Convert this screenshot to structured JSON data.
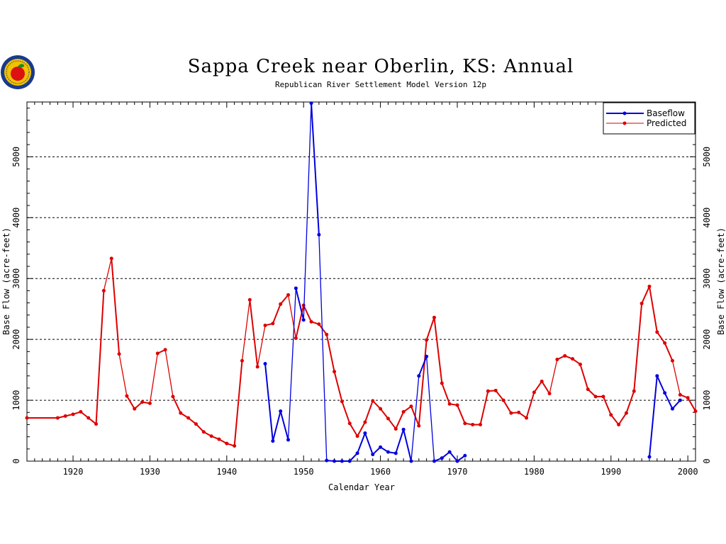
{
  "colors": {
    "baseflow": "#0000dd",
    "predicted": "#dd0000",
    "logo_ring": "#1a3a8a",
    "logo_fill": "#f2c200",
    "logo_apple": "#dd1111",
    "logo_leaf": "#1d8a1d"
  },
  "logo": {
    "icon": "apple-seal-icon"
  },
  "chart_data": {
    "type": "line",
    "title": "Sappa Creek near Oberlin, KS: Annual",
    "subtitle": "Republican River Settlement Model Version 12p",
    "xlabel": "Calendar Year",
    "ylabel_left": "Base Flow (acre-feet)",
    "ylabel_right": "Base Flow (acre-feet)",
    "xlim": [
      1914,
      2001
    ],
    "ylim": [
      0,
      5900
    ],
    "x_ticks": [
      1920,
      1930,
      1940,
      1950,
      1960,
      1970,
      1980,
      1990,
      2000
    ],
    "x_tick_labels": [
      "1920",
      "1930",
      "1940",
      "1950",
      "1960",
      "1970",
      "1980",
      "1990",
      "2000"
    ],
    "y_ticks": [
      0,
      1000,
      2000,
      3000,
      4000,
      5000
    ],
    "y_tick_labels": [
      "0",
      "1000",
      "2000",
      "3000",
      "4000",
      "5000"
    ],
    "gridlines_y": [
      1000,
      2000,
      3000,
      4000,
      5000
    ],
    "legend_position": "top-right",
    "series": [
      {
        "name": "Baseflow",
        "color": "#0000dd",
        "segments": [
          {
            "x": [
              1945,
              1946,
              1947,
              1948,
              1949,
              1950,
              1951,
              1952,
              1953,
              1954,
              1955,
              1956,
              1957,
              1958,
              1959,
              1960,
              1961,
              1962,
              1963,
              1964,
              1965,
              1966,
              1967,
              1968,
              1969,
              1970,
              1971
            ],
            "y": [
              1600,
              330,
              820,
              350,
              2840,
              2320,
              5880,
              3720,
              10,
              0,
              0,
              0,
              130,
              460,
              110,
              230,
              150,
              130,
              520,
              0,
              1400,
              1720,
              0,
              50,
              150,
              0,
              90
            ]
          },
          {
            "x": [
              1995,
              1996,
              1997,
              1998,
              1999
            ],
            "y": [
              70,
              1400,
              1120,
              860,
              1000
            ]
          }
        ]
      },
      {
        "name": "Predicted",
        "color": "#dd0000",
        "x": [
          1914,
          1918,
          1919,
          1920,
          1921,
          1922,
          1923,
          1924,
          1925,
          1926,
          1927,
          1928,
          1929,
          1930,
          1931,
          1932,
          1933,
          1934,
          1935,
          1936,
          1937,
          1938,
          1939,
          1940,
          1941,
          1942,
          1943,
          1944,
          1945,
          1946,
          1947,
          1948,
          1949,
          1950,
          1951,
          1952,
          1953,
          1954,
          1955,
          1956,
          1957,
          1958,
          1959,
          1960,
          1961,
          1962,
          1963,
          1964,
          1965,
          1966,
          1967,
          1968,
          1969,
          1970,
          1971,
          1972,
          1973,
          1974,
          1975,
          1976,
          1977,
          1978,
          1979,
          1980,
          1981,
          1982,
          1983,
          1984,
          1985,
          1986,
          1987,
          1988,
          1989,
          1990,
          1991,
          1992,
          1993,
          1994,
          1995,
          1996,
          1997,
          1998,
          1999,
          2000,
          2001
        ],
        "y": [
          710,
          710,
          740,
          770,
          810,
          710,
          610,
          2800,
          3330,
          1760,
          1070,
          860,
          970,
          950,
          1770,
          1830,
          1060,
          790,
          710,
          610,
          480,
          410,
          360,
          290,
          250,
          1650,
          2650,
          1550,
          2230,
          2260,
          2580,
          2730,
          2020,
          2560,
          2290,
          2250,
          2080,
          1470,
          980,
          620,
          410,
          640,
          990,
          860,
          700,
          530,
          810,
          900,
          580,
          1990,
          2360,
          1280,
          940,
          920,
          620,
          600,
          600,
          1150,
          1160,
          1000,
          790,
          800,
          710,
          1130,
          1310,
          1110,
          1670,
          1730,
          1680,
          1590,
          1180,
          1060,
          1060,
          760,
          600,
          790,
          1150,
          2590,
          2870,
          2120,
          1940,
          1650,
          1090,
          1040,
          820
        ]
      }
    ]
  }
}
